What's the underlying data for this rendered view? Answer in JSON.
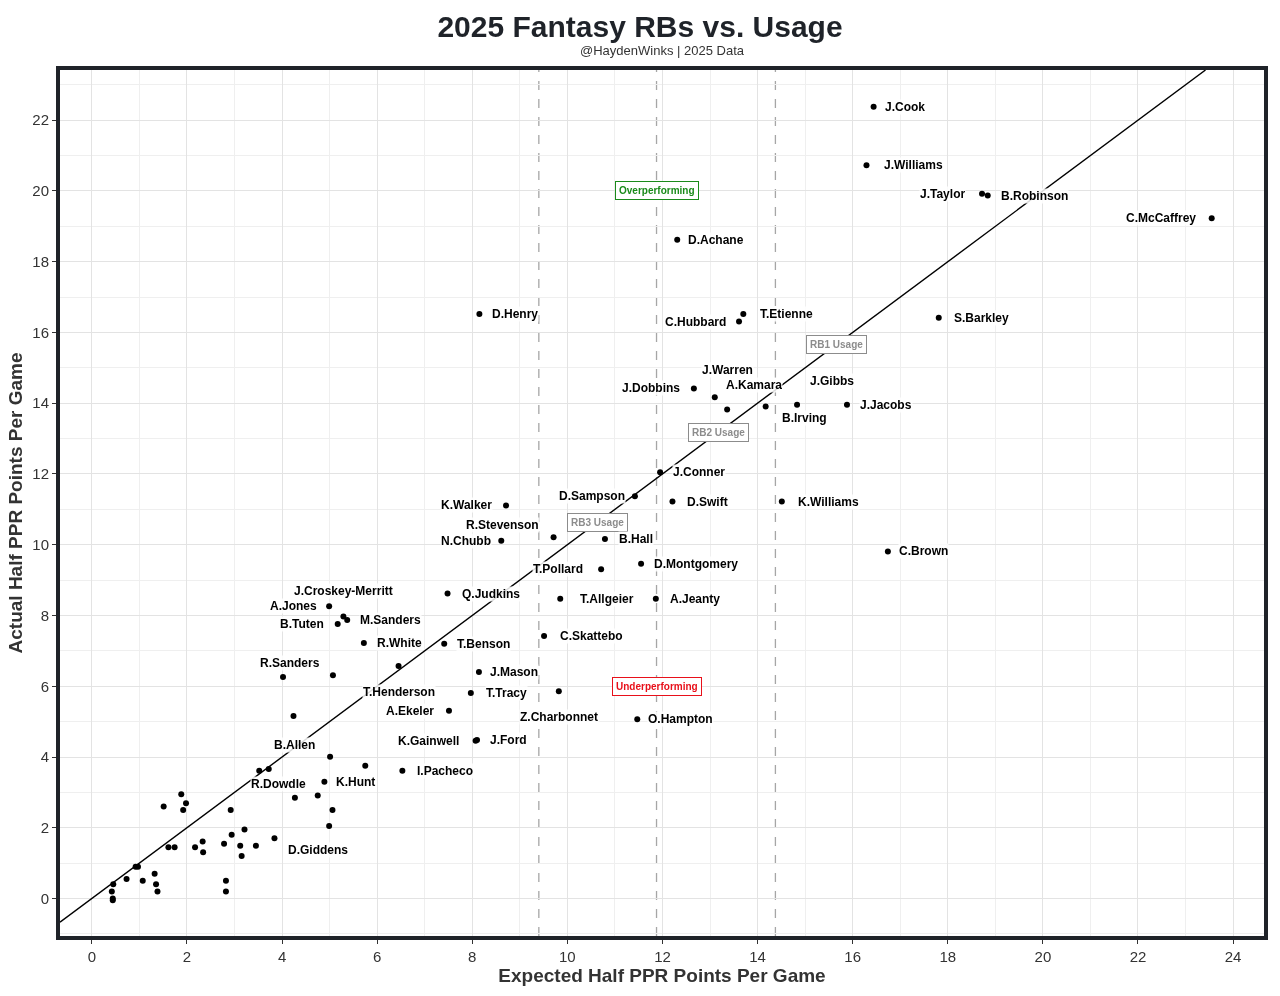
{
  "chart_data": {
    "type": "scatter",
    "title": "2025 Fantasy RBs vs. Usage",
    "subtitle": "@HaydenWinks | 2025 Data",
    "xlabel": "Expected Half PPR Points Per Game",
    "ylabel": "Actual Half PPR Points Per Game",
    "xlim": [
      -0.67,
      24.65
    ],
    "ylim": [
      -1.06,
      23.42
    ],
    "xticks": [
      0,
      2,
      4,
      6,
      8,
      10,
      12,
      14,
      16,
      18,
      20,
      22,
      24
    ],
    "yticks": [
      0,
      2,
      4,
      6,
      8,
      10,
      12,
      14,
      16,
      18,
      20,
      22
    ],
    "grid": true,
    "marker": "circle",
    "series": [
      {
        "color": "#000000",
        "x": [
          16.44,
          16.29,
          18.72,
          18.84,
          23.55,
          12.31,
          8.15,
          13.7,
          13.61,
          17.81,
          12.66,
          13.1,
          13.36,
          14.17,
          14.83,
          15.88,
          11.95,
          11.42,
          12.21,
          14.51,
          8.71,
          9.71,
          8.61,
          10.79,
          11.55,
          16.74,
          10.71,
          9.85,
          11.86,
          9.51,
          9.82,
          11.47,
          7.48,
          4.99,
          5.29,
          5.37,
          5.17,
          5.72,
          7.41,
          6.45,
          4.02,
          5.07,
          4.24,
          8.14,
          7.97,
          7.51,
          8.1,
          8.07,
          5.01,
          5.75,
          6.53,
          3.52,
          3.72,
          4.89,
          1.88,
          1.98,
          1.51,
          1.92,
          2.92,
          4.27,
          4.75,
          5.06,
          4.99,
          3.21,
          2.94,
          3.84,
          2.33,
          2.78,
          3.12,
          3.45,
          1.61,
          1.74,
          2.17,
          2.34,
          3.15,
          0.92,
          0.97,
          0.73,
          1.07,
          1.32,
          1.35,
          1.38,
          0.45,
          0.42,
          0.44,
          0.44,
          2.82,
          2.82
        ],
        "values": [
          22.38,
          20.73,
          19.92,
          19.87,
          19.23,
          18.62,
          16.52,
          16.52,
          16.31,
          16.42,
          14.42,
          14.17,
          13.82,
          13.91,
          13.96,
          13.96,
          12.05,
          11.37,
          11.22,
          11.22,
          11.11,
          10.21,
          10.11,
          10.16,
          9.46,
          9.81,
          9.31,
          8.47,
          8.47,
          7.42,
          5.86,
          5.07,
          8.62,
          8.26,
          7.97,
          7.87,
          7.76,
          7.22,
          7.2,
          6.57,
          6.26,
          6.31,
          5.16,
          6.4,
          5.81,
          5.31,
          4.48,
          4.46,
          4.01,
          3.75,
          3.61,
          3.61,
          3.66,
          3.3,
          2.95,
          2.69,
          2.6,
          2.5,
          2.5,
          2.85,
          2.91,
          2.5,
          2.05,
          1.95,
          1.8,
          1.7,
          1.61,
          1.55,
          1.49,
          1.49,
          1.45,
          1.45,
          1.45,
          1.31,
          1.2,
          0.9,
          0.9,
          0.55,
          0.5,
          0.7,
          0.4,
          0.2,
          0.4,
          0.2,
          0.0,
          -0.05,
          0.5,
          0.2
        ]
      },
      {
        "type": "line",
        "color": "#000000",
        "line_style": "solid",
        "marker": "none",
        "x": [
          -0.67,
          23.42
        ],
        "values": [
          -0.67,
          23.42
        ]
      }
    ],
    "ref_lines": [
      {
        "axis": "x",
        "value": 9.4,
        "color": "#a6a6a6",
        "line_style": "dashed"
      },
      {
        "axis": "x",
        "value": 11.875,
        "color": "#a6a6a6",
        "line_style": "dashed"
      },
      {
        "axis": "x",
        "value": 14.375,
        "color": "#a6a6a6",
        "line_style": "dashed"
      }
    ],
    "annotations": [
      {
        "text": "Overperforming",
        "x": 11.875,
        "y": 20.02
      },
      {
        "text": "Underperforming",
        "x": 11.875,
        "y": 6.0
      },
      {
        "text": "RB1 Usage",
        "x": 15.67,
        "y": 15.67
      },
      {
        "text": "RB2 Usage",
        "x": 13.17,
        "y": 13.17
      },
      {
        "text": "RB3 Usage",
        "x": 10.63,
        "y": 10.63
      },
      {
        "text": "J.Cook",
        "x": 16.44,
        "y": 22.38
      },
      {
        "text": "J.Williams",
        "x": 16.29,
        "y": 20.73
      },
      {
        "text": "J.Taylor",
        "x": 18.72,
        "y": 19.92
      },
      {
        "text": "B.Robinson",
        "x": 18.84,
        "y": 19.87
      },
      {
        "text": "C.McCaffrey",
        "x": 23.55,
        "y": 19.23
      },
      {
        "text": "D.Achane",
        "x": 12.31,
        "y": 18.62
      },
      {
        "text": "D.Henry",
        "x": 8.15,
        "y": 16.52
      },
      {
        "text": "T.Etienne",
        "x": 13.7,
        "y": 16.52
      },
      {
        "text": "C.Hubbard",
        "x": 13.61,
        "y": 16.31
      },
      {
        "text": "S.Barkley",
        "x": 17.81,
        "y": 16.42
      },
      {
        "text": "J.Dobbins",
        "x": 12.66,
        "y": 14.42
      },
      {
        "text": "A.Kamara",
        "x": 13.1,
        "y": 14.17
      },
      {
        "text": "J.Warren",
        "x": 13.36,
        "y": 13.82
      },
      {
        "text": "B.Irving",
        "x": 14.17,
        "y": 13.91
      },
      {
        "text": "J.Gibbs",
        "x": 14.83,
        "y": 13.96
      },
      {
        "text": "J.Jacobs",
        "x": 15.88,
        "y": 13.96
      },
      {
        "text": "J.Conner",
        "x": 11.95,
        "y": 12.05
      },
      {
        "text": "D.Sampson",
        "x": 11.42,
        "y": 11.37
      },
      {
        "text": "D.Swift",
        "x": 12.21,
        "y": 11.22
      },
      {
        "text": "K.Williams",
        "x": 14.51,
        "y": 11.22
      },
      {
        "text": "K.Walker",
        "x": 8.71,
        "y": 11.11
      },
      {
        "text": "R.Stevenson",
        "x": 9.71,
        "y": 10.21
      },
      {
        "text": "N.Chubb",
        "x": 8.61,
        "y": 10.11
      },
      {
        "text": "B.Hall",
        "x": 10.79,
        "y": 10.16
      },
      {
        "text": "D.Montgomery",
        "x": 11.55,
        "y": 9.46
      },
      {
        "text": "T.Pollard",
        "x": 10.71,
        "y": 9.31
      },
      {
        "text": "C.Brown",
        "x": 16.74,
        "y": 9.81
      },
      {
        "text": "Q.Judkins",
        "x": 7.48,
        "y": 8.62
      },
      {
        "text": "T.Allgeier",
        "x": 9.85,
        "y": 8.47
      },
      {
        "text": "A.Jeanty",
        "x": 11.86,
        "y": 8.47
      },
      {
        "text": "A.Jones",
        "x": 4.99,
        "y": 8.26
      },
      {
        "text": "J.Croskey-Merritt",
        "x": 5.29,
        "y": 7.97
      },
      {
        "text": "B.Tuten",
        "x": 5.17,
        "y": 7.76
      },
      {
        "text": "R.White",
        "x": 5.72,
        "y": 7.22
      },
      {
        "text": "C.Skattebo",
        "x": 9.51,
        "y": 7.42
      },
      {
        "text": "T.Benson",
        "x": 7.41,
        "y": 7.2
      },
      {
        "text": "M.Sanders",
        "x": 5.37,
        "y": 7.87
      },
      {
        "text": "J.Mason",
        "x": 8.14,
        "y": 6.4
      },
      {
        "text": "T.Henderson",
        "x": 6.45,
        "y": 6.57
      },
      {
        "text": "R.Sanders",
        "x": 5.07,
        "y": 6.31
      },
      {
        "text": "Z.Charbonnet",
        "x": 9.82,
        "y": 5.86
      },
      {
        "text": "O.Hampton",
        "x": 11.47,
        "y": 5.07
      },
      {
        "text": "T.Tracy",
        "x": 7.97,
        "y": 5.81
      },
      {
        "text": "A.Ekeler",
        "x": 7.51,
        "y": 5.31
      },
      {
        "text": "J.Ford",
        "x": 8.1,
        "y": 4.48
      },
      {
        "text": "K.Gainwell",
        "x": 8.07,
        "y": 4.46
      },
      {
        "text": "B.Allen",
        "x": 5.01,
        "y": 4.01
      },
      {
        "text": "K.Hunt",
        "x": 4.89,
        "y": 3.3
      },
      {
        "text": "I.Pacheco",
        "x": 6.53,
        "y": 3.61
      },
      {
        "text": "R.Dowdle",
        "x": 4.75,
        "y": 2.91
      },
      {
        "text": "D.Giddens",
        "x": 3.84,
        "y": 1.7
      }
    ]
  }
}
